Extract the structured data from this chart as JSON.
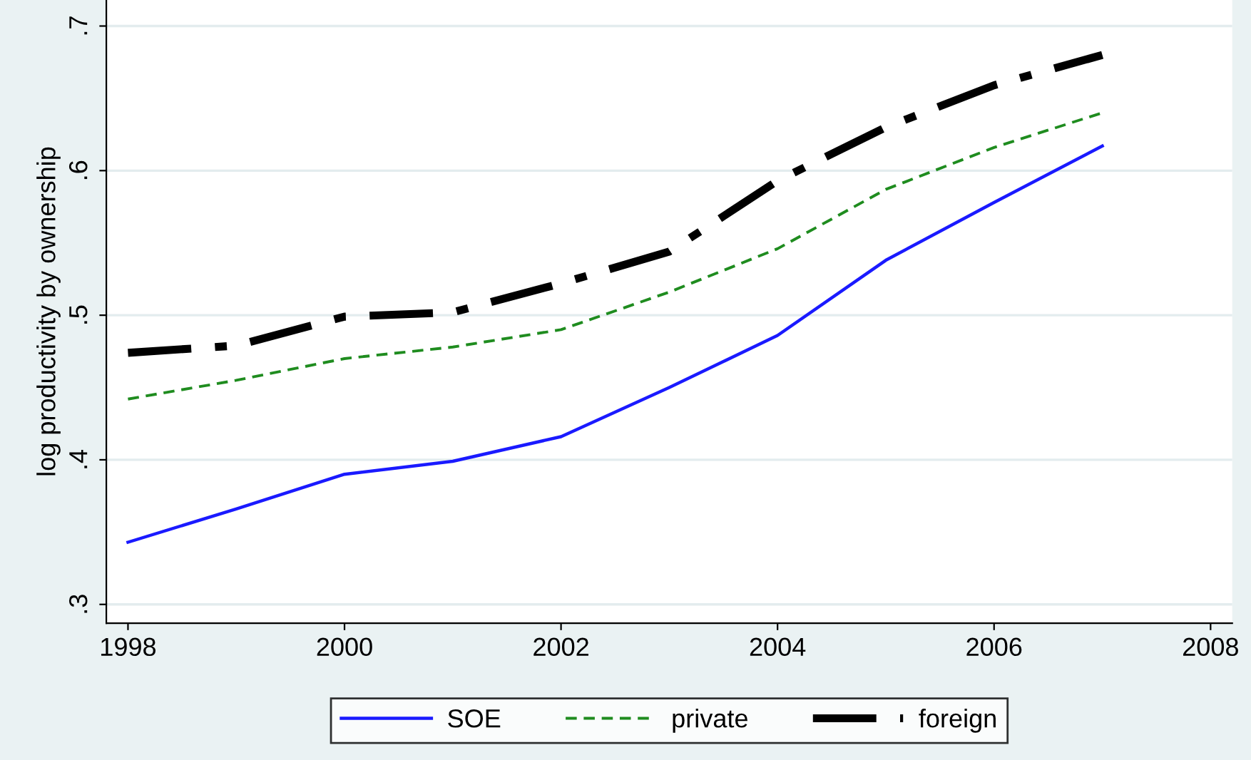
{
  "chart_data": {
    "type": "line",
    "ylabel": "log productivity by ownership",
    "x": [
      1998,
      1999,
      2000,
      2001,
      2002,
      2003,
      2004,
      2005,
      2006,
      2007
    ],
    "series": [
      {
        "name": "SOE",
        "color": "#1a1aff",
        "line_style": "solid",
        "values": [
          0.343,
          0.366,
          0.39,
          0.399,
          0.416,
          0.45,
          0.486,
          0.538,
          0.578,
          0.617
        ]
      },
      {
        "name": "private",
        "color": "#1f8c1f",
        "line_style": "dashed",
        "values": [
          0.442,
          0.455,
          0.47,
          0.478,
          0.49,
          0.516,
          0.546,
          0.587,
          0.616,
          0.64
        ]
      },
      {
        "name": "foreign",
        "color": "#000000",
        "line_style": "dashdot",
        "values": [
          0.474,
          0.479,
          0.499,
          0.502,
          0.522,
          0.544,
          0.593,
          0.63,
          0.659,
          0.68
        ]
      }
    ],
    "xlim": [
      1997.8,
      2008.2
    ],
    "xticks": [
      1998,
      2000,
      2002,
      2004,
      2006,
      2008
    ],
    "ylim": [
      0.287,
      0.718
    ],
    "yticks": [
      {
        "value": 0.3,
        "label": ".3"
      },
      {
        "value": 0.4,
        "label": ".4"
      },
      {
        "value": 0.5,
        "label": ".5"
      },
      {
        "value": 0.6,
        "label": ".6"
      },
      {
        "value": 0.7,
        "label": ".7"
      }
    ],
    "grid": "y",
    "legend": "bottom",
    "marker": "none"
  }
}
